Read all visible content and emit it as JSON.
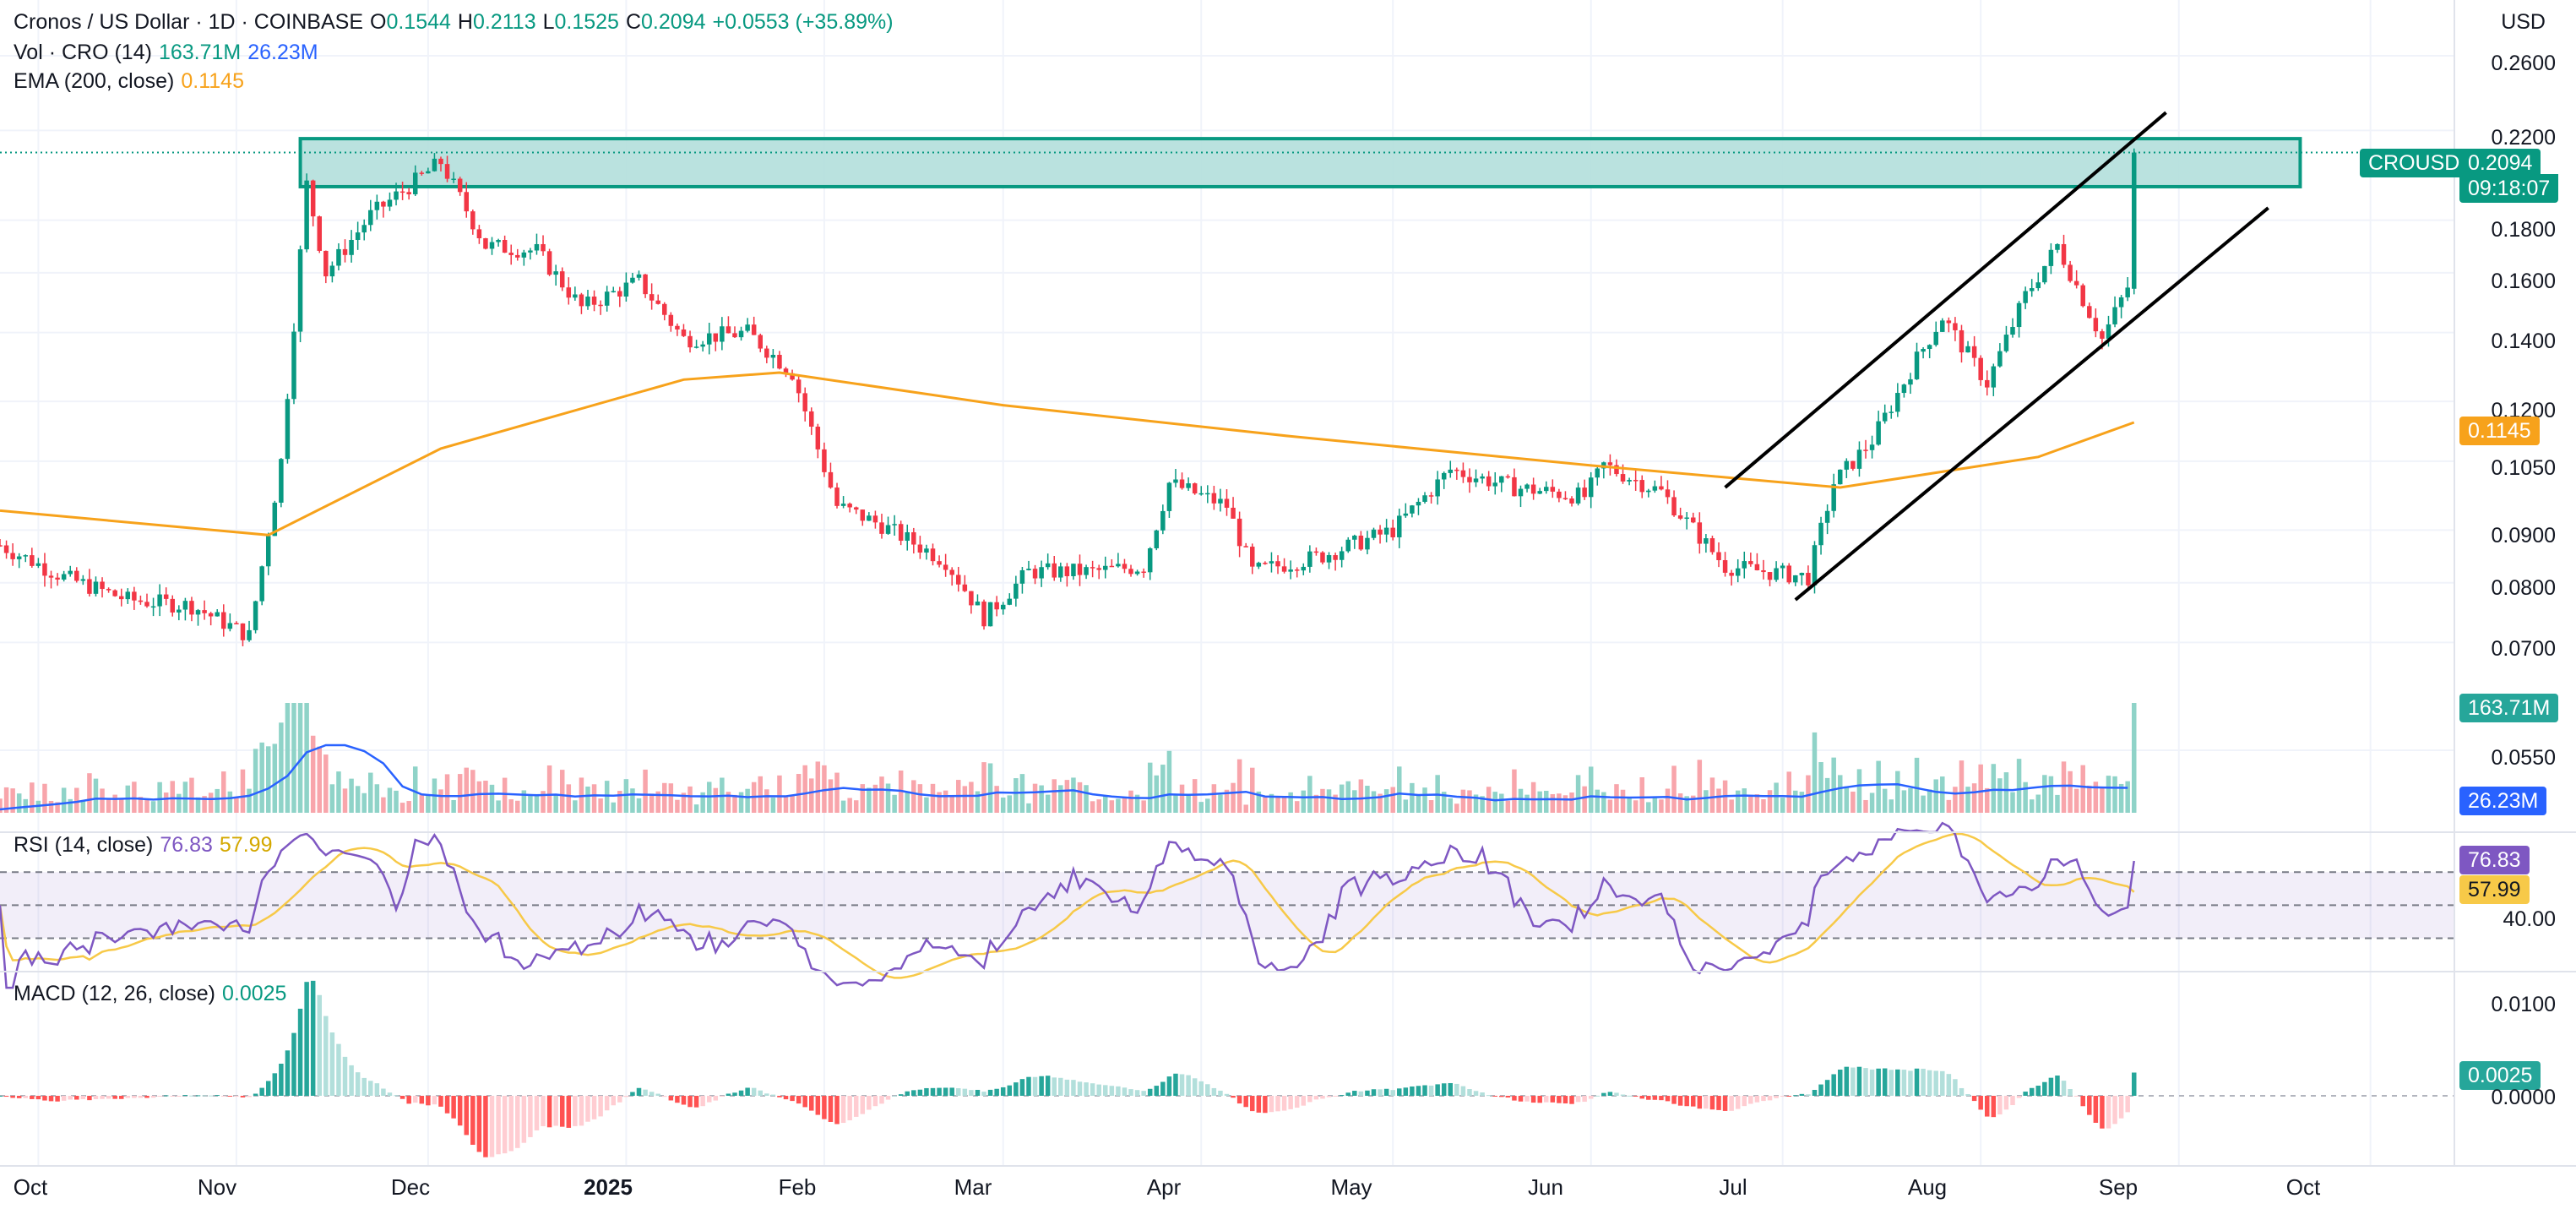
{
  "header": {
    "title": "Cronos / US Dollar · 1D · COINBASE",
    "ohlc": {
      "open_label": "O",
      "open": "0.1544",
      "high_label": "H",
      "high": "0.2113",
      "low_label": "L",
      "low": "0.1525",
      "close_label": "C",
      "close": "0.2094",
      "change": "+0.0553 (+35.89%)"
    },
    "volume_indicator": {
      "label": "Vol · CRO (14)",
      "value": "163.71M",
      "ma_value": "26.23M"
    },
    "ema_indicator": {
      "label": "EMA (200, close)",
      "value": "0.1145"
    },
    "currency": "USD"
  },
  "price_axis": {
    "ticks": [
      "0.2600",
      "0.2200",
      "0.1800",
      "0.1600",
      "0.1400",
      "0.1200",
      "0.1050",
      "0.0900",
      "0.0800",
      "0.0700",
      "0.0550"
    ],
    "symbol_badge": "CROUSD",
    "last_price_badge": "0.2094",
    "countdown_badge": "09:18:07",
    "ema_badge": "0.1145",
    "volume_badge": "163.71M",
    "volume_ma_badge": "26.23M"
  },
  "rsi": {
    "label": "RSI (14, close)",
    "value": "76.83",
    "ma_value": "57.99",
    "ticks": [
      "40.00"
    ],
    "badge_value": "76.83",
    "badge_ma": "57.99"
  },
  "macd": {
    "label": "MACD (12, 26, close)",
    "value": "0.0025",
    "ticks": [
      "0.0100",
      "0.0000"
    ],
    "badge": "0.0025"
  },
  "time_axis": {
    "labels": [
      "Oct",
      "Nov",
      "Dec",
      "2025",
      "Feb",
      "Mar",
      "Apr",
      "May",
      "Jun",
      "Jul",
      "Aug",
      "Sep",
      "Oct"
    ]
  },
  "colors": {
    "up": "#089981",
    "down": "#f23645",
    "ema": "#f7a21b",
    "volume_ma": "#2962ff",
    "rsi": "#7e57c2",
    "rsi_ma": "#f7c948",
    "zone_fill": "#b2dfdb",
    "zone_border": "#089981"
  },
  "chart_data": {
    "type": "candlestick",
    "x_range": [
      "2024-09-25",
      "2025-10-14"
    ],
    "y_scale": "log",
    "y_range": [
      0.045,
      0.28
    ],
    "anchors": [
      {
        "date": "2024-09-25",
        "close": 0.087
      },
      {
        "date": "2024-10-05",
        "close": 0.081
      },
      {
        "date": "2024-10-15",
        "close": 0.077
      },
      {
        "date": "2024-10-25",
        "close": 0.076
      },
      {
        "date": "2024-11-03",
        "close": 0.071
      },
      {
        "date": "2024-11-08",
        "close": 0.105
      },
      {
        "date": "2024-11-12",
        "close": 0.195
      },
      {
        "date": "2024-11-15",
        "close": 0.16
      },
      {
        "date": "2024-11-22",
        "close": 0.182
      },
      {
        "date": "2024-12-03",
        "close": 0.205
      },
      {
        "date": "2024-12-10",
        "close": 0.17
      },
      {
        "date": "2024-12-18",
        "close": 0.168
      },
      {
        "date": "2024-12-25",
        "close": 0.148
      },
      {
        "date": "2025-01-03",
        "close": 0.157
      },
      {
        "date": "2025-01-10",
        "close": 0.138
      },
      {
        "date": "2025-01-20",
        "close": 0.14
      },
      {
        "date": "2025-01-27",
        "close": 0.128
      },
      {
        "date": "2025-02-03",
        "close": 0.095
      },
      {
        "date": "2025-02-10",
        "close": 0.091
      },
      {
        "date": "2025-02-20",
        "close": 0.084
      },
      {
        "date": "2025-02-26",
        "close": 0.074
      },
      {
        "date": "2025-03-05",
        "close": 0.082
      },
      {
        "date": "2025-03-15",
        "close": 0.082
      },
      {
        "date": "2025-03-23",
        "close": 0.083
      },
      {
        "date": "2025-03-27",
        "close": 0.1
      },
      {
        "date": "2025-04-05",
        "close": 0.095
      },
      {
        "date": "2025-04-09",
        "close": 0.082
      },
      {
        "date": "2025-04-20",
        "close": 0.085
      },
      {
        "date": "2025-05-01",
        "close": 0.09
      },
      {
        "date": "2025-05-10",
        "close": 0.103
      },
      {
        "date": "2025-05-20",
        "close": 0.099
      },
      {
        "date": "2025-05-31",
        "close": 0.097
      },
      {
        "date": "2025-06-03",
        "close": 0.104
      },
      {
        "date": "2025-06-12",
        "close": 0.098
      },
      {
        "date": "2025-06-22",
        "close": 0.083
      },
      {
        "date": "2025-07-05",
        "close": 0.081
      },
      {
        "date": "2025-07-09",
        "close": 0.1
      },
      {
        "date": "2025-07-15",
        "close": 0.11
      },
      {
        "date": "2025-07-22",
        "close": 0.132
      },
      {
        "date": "2025-07-26",
        "close": 0.145
      },
      {
        "date": "2025-08-02",
        "close": 0.125
      },
      {
        "date": "2025-08-08",
        "close": 0.152
      },
      {
        "date": "2025-08-13",
        "close": 0.17
      },
      {
        "date": "2025-08-20",
        "close": 0.138
      },
      {
        "date": "2025-08-24",
        "close": 0.155
      },
      {
        "date": "2025-08-25",
        "close": 0.2094
      }
    ],
    "ema200": [
      {
        "date": "2024-09-25",
        "value": 0.094
      },
      {
        "date": "2024-11-06",
        "value": 0.089
      },
      {
        "date": "2024-12-03",
        "value": 0.108
      },
      {
        "date": "2025-01-10",
        "value": 0.126
      },
      {
        "date": "2025-01-25",
        "value": 0.128
      },
      {
        "date": "2025-03-01",
        "value": 0.119
      },
      {
        "date": "2025-04-15",
        "value": 0.111
      },
      {
        "date": "2025-06-01",
        "value": 0.104
      },
      {
        "date": "2025-07-10",
        "value": 0.099
      },
      {
        "date": "2025-08-10",
        "value": 0.106
      },
      {
        "date": "2025-08-25",
        "value": 0.1145
      }
    ],
    "resistance_zone": {
      "from": "2024-11-11",
      "to": "2025-09-20",
      "low": 0.194,
      "high": 0.216
    },
    "channel_upper": [
      {
        "date": "2025-06-22",
        "value": 0.099
      },
      {
        "date": "2025-08-30",
        "value": 0.229
      }
    ],
    "channel_lower": [
      {
        "date": "2025-07-03",
        "value": 0.077
      },
      {
        "date": "2025-09-15",
        "value": 0.185
      }
    ],
    "rsi_levels": {
      "overbought": 70,
      "middle": 50,
      "oversold": 30
    },
    "last": {
      "rsi": 76.83,
      "rsi_ma": 57.99,
      "macd_hist": 0.0025,
      "volume": "163.71M",
      "volume_ma": "26.23M"
    }
  }
}
